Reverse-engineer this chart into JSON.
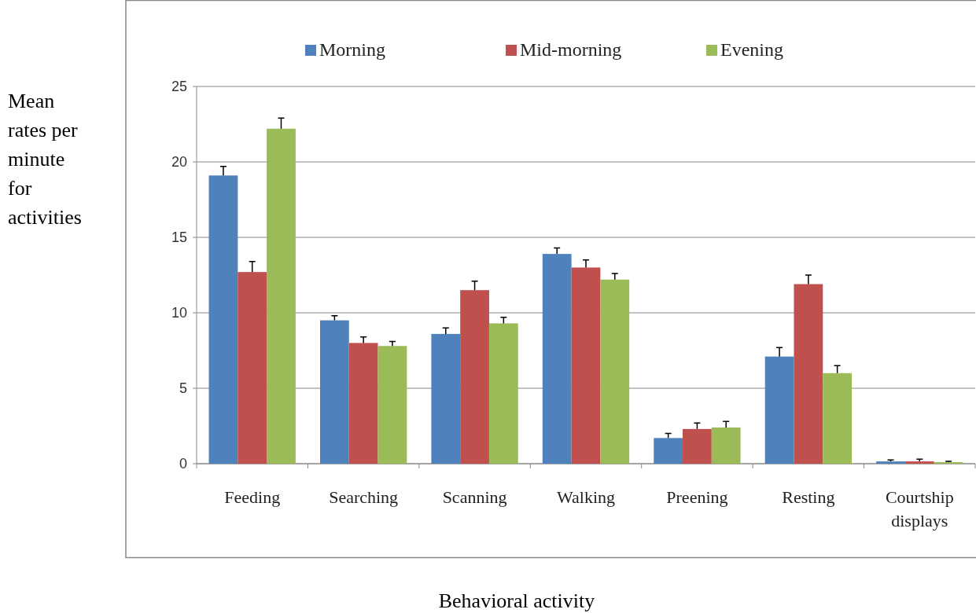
{
  "chart_data": {
    "type": "bar",
    "xlabel": "Behavioral activity",
    "ylabel": "Mean rates per minute for activities",
    "categories": [
      "Feeding",
      "Searching",
      "Scanning",
      "Walking",
      "Preening",
      "Resting",
      "Courtship displays"
    ],
    "series": [
      {
        "name": "Morning",
        "color": "#4f81bd",
        "values": [
          19.1,
          9.5,
          8.6,
          13.9,
          1.7,
          7.1,
          0.15
        ],
        "errors": [
          0.6,
          0.3,
          0.4,
          0.4,
          0.3,
          0.6,
          0.1
        ]
      },
      {
        "name": "Mid-morning",
        "color": "#c0504d",
        "values": [
          12.7,
          8.0,
          11.5,
          13.0,
          2.3,
          11.9,
          0.15
        ],
        "errors": [
          0.7,
          0.4,
          0.6,
          0.5,
          0.4,
          0.6,
          0.15
        ]
      },
      {
        "name": "Evening",
        "color": "#9bbb59",
        "values": [
          22.2,
          7.8,
          9.3,
          12.2,
          2.4,
          6.0,
          0.1
        ],
        "errors": [
          0.7,
          0.3,
          0.4,
          0.4,
          0.4,
          0.5,
          0.05
        ]
      }
    ],
    "ylim": [
      0,
      25
    ],
    "yticks": [
      0,
      5,
      10,
      15,
      20,
      25
    ],
    "grid": "y",
    "legend": "top"
  }
}
